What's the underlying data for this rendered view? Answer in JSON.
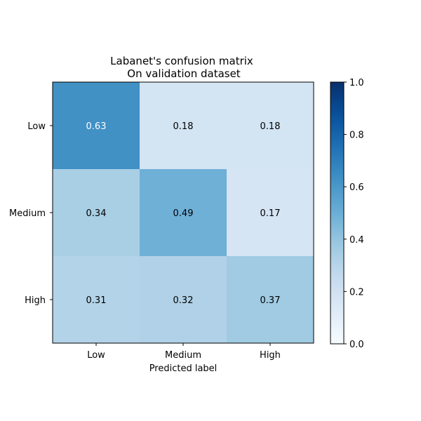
{
  "chart_data": {
    "type": "heatmap",
    "title": "Labanet's confusion matrix",
    "subtitle": "On validation dataset",
    "xlabel": "Predicted label",
    "ylabel": "",
    "x_categories": [
      "Low",
      "Medium",
      "High"
    ],
    "y_categories": [
      "Low",
      "Medium",
      "High"
    ],
    "values": [
      [
        0.63,
        0.18,
        0.18
      ],
      [
        0.34,
        0.49,
        0.17
      ],
      [
        0.31,
        0.32,
        0.37
      ]
    ],
    "color_range": [
      0.0,
      1.0
    ],
    "colormap": "Blues",
    "colorbar_ticks": [
      "0.0",
      "0.2",
      "0.4",
      "0.6",
      "0.8",
      "1.0"
    ],
    "grid": false,
    "annotation_colors": {
      "light_text": "#ffffff",
      "dark_text": "#000000"
    }
  }
}
